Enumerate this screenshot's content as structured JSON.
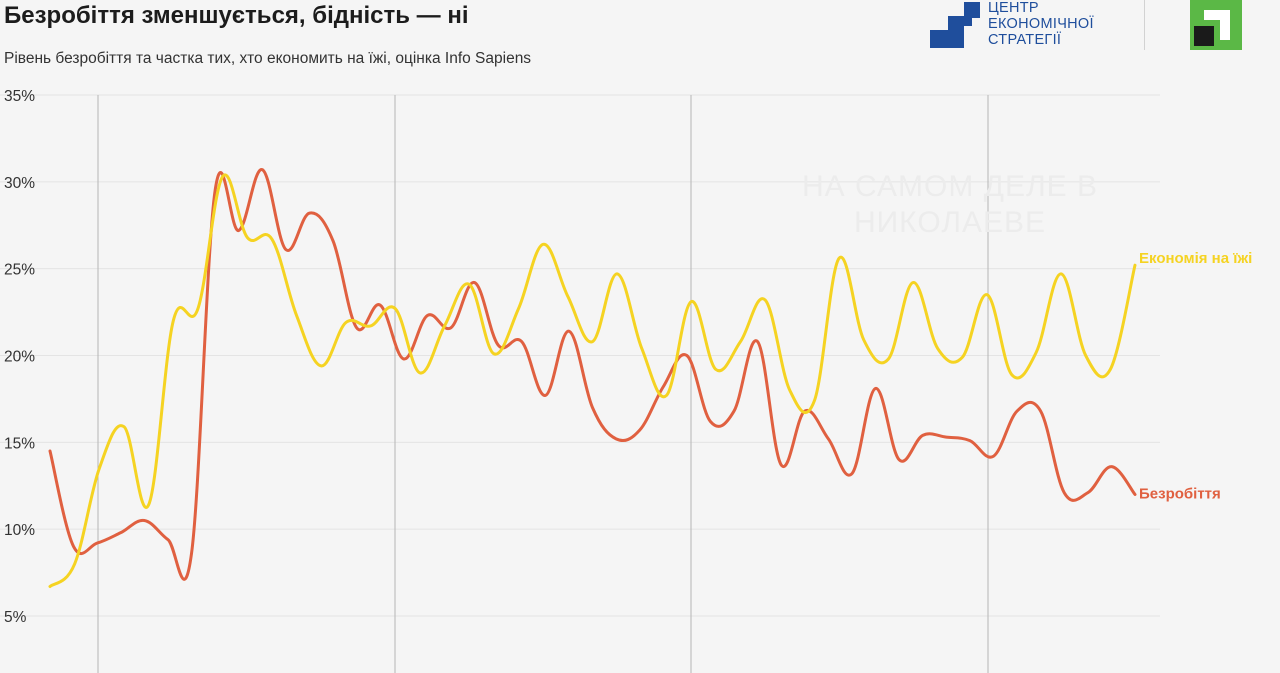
{
  "header": {
    "title": "Безробіття зменшується, бідність — ні",
    "subtitle": "Рівень безробіття та частка тих, хто економить на їжі, оцінка Info Sapiens"
  },
  "logos": {
    "ces": {
      "lines": [
        "ЦЕНТР",
        "ЕКОНОМІЧНОЇ",
        "СТРАТЕГІЇ"
      ],
      "color": "#1f4e9c",
      "icon": "ces-squares-icon"
    },
    "privatbank": {
      "icon": "privatbank-icon",
      "color": "#5bb846"
    }
  },
  "watermark": {
    "lines": [
      "НА САМОМ ДЕЛЕ В",
      "НИКОЛАЕВЕ"
    ]
  },
  "chart_data": {
    "type": "line",
    "title": "",
    "xlabel": "",
    "ylabel": "",
    "ylim": [
      5,
      35
    ],
    "yticks": [
      5,
      10,
      15,
      20,
      25,
      30,
      35
    ],
    "ytick_format": "%",
    "grid": true,
    "x_points": 67,
    "series": [
      {
        "name": "Безробіття",
        "color": "#e06040",
        "values": [
          14.5,
          9.0,
          9.2,
          9.8,
          10.5,
          9.4,
          8.6,
          29.5,
          27.2,
          30.7,
          26.1,
          28.2,
          26.6,
          21.6,
          22.9,
          19.8,
          22.3,
          21.6,
          24.2,
          20.6,
          20.8,
          17.7,
          21.4,
          17.0,
          15.2,
          15.7,
          18.2,
          20.0,
          16.2,
          16.8,
          20.8,
          13.7,
          16.8,
          15.2,
          13.2,
          18.1,
          14.0,
          15.4,
          15.3,
          15.1,
          14.2,
          16.8,
          16.8,
          12.1,
          12.1,
          13.6,
          12.0
        ]
      },
      {
        "name": "Економія на їжі",
        "color": "#f5d322",
        "values": [
          6.7,
          8.0,
          13.5,
          15.9,
          11.4,
          22.0,
          22.7,
          30.3,
          26.8,
          26.7,
          22.3,
          19.4,
          21.9,
          21.7,
          22.7,
          19.0,
          21.7,
          24.1,
          20.1,
          22.7,
          26.4,
          23.4,
          20.8,
          24.7,
          20.4,
          17.7,
          23.1,
          19.2,
          20.8,
          23.2,
          18.0,
          17.4,
          25.6,
          20.9,
          19.8,
          24.2,
          20.4,
          19.9,
          23.5,
          18.9,
          20.2,
          24.7,
          20.0,
          19.2,
          25.2
        ]
      }
    ]
  }
}
